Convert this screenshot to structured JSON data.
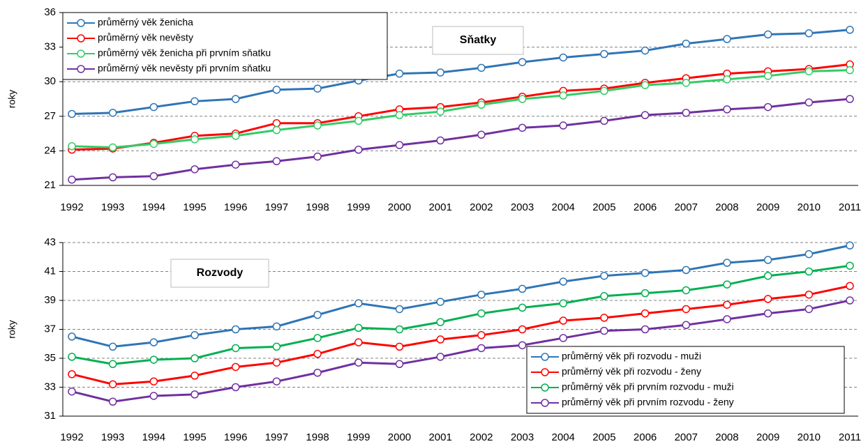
{
  "chart_data": [
    {
      "type": "line",
      "y_label": "roky",
      "annotation": "Sňatky",
      "legend": "upper left",
      "grid": true,
      "categories": [
        "1992",
        "1993",
        "1994",
        "1995",
        "1996",
        "1997",
        "1998",
        "1999",
        "2000",
        "2001",
        "2002",
        "2003",
        "2004",
        "2005",
        "2006",
        "2007",
        "2008",
        "2009",
        "2010",
        "2011"
      ],
      "ylim": [
        21,
        36
      ],
      "yticks": [
        21,
        24,
        27,
        30,
        33,
        36
      ],
      "series": [
        {
          "name": "průměrný věk ženicha",
          "color": "#2e75b6",
          "values": [
            27.2,
            27.3,
            27.8,
            28.3,
            28.5,
            29.3,
            29.4,
            30.1,
            30.7,
            30.8,
            31.2,
            31.7,
            32.1,
            32.4,
            32.7,
            33.3,
            33.7,
            34.1,
            34.2,
            34.5
          ]
        },
        {
          "name": "průměrný věk nevěsty",
          "color": "#ff0000",
          "values": [
            24.1,
            24.2,
            24.7,
            25.3,
            25.5,
            26.4,
            26.4,
            27.0,
            27.6,
            27.8,
            28.2,
            28.7,
            29.2,
            29.4,
            29.9,
            30.3,
            30.7,
            30.9,
            31.1,
            31.5
          ]
        },
        {
          "name": "průměrný věk ženicha při prvním sňatku",
          "color": "#33cc66",
          "values": [
            24.4,
            24.3,
            24.6,
            25.0,
            25.3,
            25.8,
            26.2,
            26.6,
            27.1,
            27.4,
            28.0,
            28.5,
            28.8,
            29.2,
            29.7,
            29.9,
            30.2,
            30.5,
            30.9,
            31.0
          ]
        },
        {
          "name": "průměrný věk nevěsty při prvním sňatku",
          "color": "#7030a0",
          "values": [
            21.5,
            21.7,
            21.8,
            22.4,
            22.8,
            23.1,
            23.5,
            24.1,
            24.5,
            24.9,
            25.4,
            26.0,
            26.2,
            26.6,
            27.1,
            27.3,
            27.6,
            27.8,
            28.2,
            28.5
          ]
        }
      ]
    },
    {
      "type": "line",
      "y_label": "roky",
      "annotation": "Rozvody",
      "legend": "lower right",
      "grid": true,
      "categories": [
        "1992",
        "1993",
        "1994",
        "1995",
        "1996",
        "1997",
        "1998",
        "1999",
        "2000",
        "2001",
        "2002",
        "2003",
        "2004",
        "2005",
        "2006",
        "2007",
        "2008",
        "2009",
        "2010",
        "2011"
      ],
      "ylim": [
        31,
        43
      ],
      "yticks": [
        31,
        33,
        35,
        37,
        39,
        41,
        43
      ],
      "series": [
        {
          "name": "průměrný věk při rozvodu - muži",
          "color": "#2e75b6",
          "values": [
            36.5,
            35.8,
            36.1,
            36.6,
            37.0,
            37.2,
            38.0,
            38.8,
            38.4,
            38.9,
            39.4,
            39.8,
            40.3,
            40.7,
            40.9,
            41.1,
            41.6,
            41.8,
            42.2,
            42.8
          ]
        },
        {
          "name": "průměrný věk při rozvodu - ženy",
          "color": "#ff0000",
          "values": [
            33.9,
            33.2,
            33.4,
            33.8,
            34.4,
            34.7,
            35.3,
            36.1,
            35.8,
            36.3,
            36.6,
            37.0,
            37.6,
            37.8,
            38.1,
            38.4,
            38.7,
            39.1,
            39.4,
            40.0
          ]
        },
        {
          "name": "průměrný věk při prvním rozvodu - muži",
          "color": "#00b050",
          "values": [
            35.1,
            34.6,
            34.9,
            35.0,
            35.7,
            35.8,
            36.4,
            37.1,
            37.0,
            37.5,
            38.1,
            38.5,
            38.8,
            39.3,
            39.5,
            39.7,
            40.1,
            40.7,
            41.0,
            41.4
          ]
        },
        {
          "name": "průměrný věk při prvním rozvodu - ženy",
          "color": "#7030a0",
          "values": [
            32.7,
            32.0,
            32.4,
            32.5,
            33.0,
            33.4,
            34.0,
            34.7,
            34.6,
            35.1,
            35.7,
            35.9,
            36.4,
            36.9,
            37.0,
            37.3,
            37.7,
            38.1,
            38.4,
            39.0
          ]
        }
      ]
    }
  ]
}
